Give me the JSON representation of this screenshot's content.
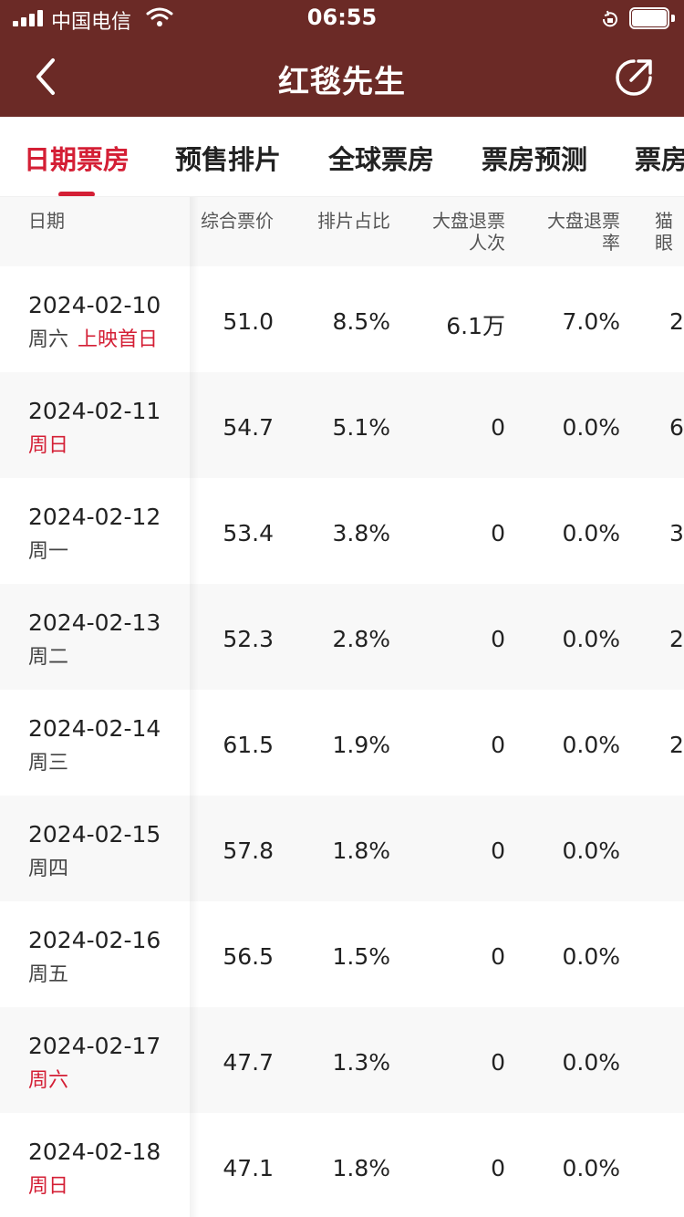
{
  "status": {
    "carrier": "中国电信",
    "time": "06:55"
  },
  "header": {
    "title": "红毯先生"
  },
  "tabs": [
    "日期票房",
    "预售排片",
    "全球票房",
    "票房预测",
    "票房"
  ],
  "columns": [
    "日期",
    "综合票价",
    "排片占比",
    "大盘退票人次",
    "大盘退票率",
    "猫眼"
  ],
  "columns_display": {
    "refund_count_l1": "大盘退票",
    "refund_count_l2": "人次",
    "refund_rate_l1": "大盘退票",
    "refund_rate_l2": "率",
    "cut": "猫眼"
  },
  "rows": [
    {
      "date": "2024-02-10",
      "weekday": "周六",
      "weekday_red": false,
      "tag": "上映首日",
      "price": "51.0",
      "share": "8.5%",
      "refund_count": "6.1万",
      "refund_rate": "7.0%",
      "cut": "2"
    },
    {
      "date": "2024-02-11",
      "weekday": "周日",
      "weekday_red": true,
      "tag": "",
      "price": "54.7",
      "share": "5.1%",
      "refund_count": "0",
      "refund_rate": "0.0%",
      "cut": "6"
    },
    {
      "date": "2024-02-12",
      "weekday": "周一",
      "weekday_red": false,
      "tag": "",
      "price": "53.4",
      "share": "3.8%",
      "refund_count": "0",
      "refund_rate": "0.0%",
      "cut": "3"
    },
    {
      "date": "2024-02-13",
      "weekday": "周二",
      "weekday_red": false,
      "tag": "",
      "price": "52.3",
      "share": "2.8%",
      "refund_count": "0",
      "refund_rate": "0.0%",
      "cut": "2"
    },
    {
      "date": "2024-02-14",
      "weekday": "周三",
      "weekday_red": false,
      "tag": "",
      "price": "61.5",
      "share": "1.9%",
      "refund_count": "0",
      "refund_rate": "0.0%",
      "cut": "2"
    },
    {
      "date": "2024-02-15",
      "weekday": "周四",
      "weekday_red": false,
      "tag": "",
      "price": "57.8",
      "share": "1.8%",
      "refund_count": "0",
      "refund_rate": "0.0%",
      "cut": ""
    },
    {
      "date": "2024-02-16",
      "weekday": "周五",
      "weekday_red": false,
      "tag": "",
      "price": "56.5",
      "share": "1.5%",
      "refund_count": "0",
      "refund_rate": "0.0%",
      "cut": ""
    },
    {
      "date": "2024-02-17",
      "weekday": "周六",
      "weekday_red": true,
      "tag": "",
      "price": "47.7",
      "share": "1.3%",
      "refund_count": "0",
      "refund_rate": "0.0%",
      "cut": ""
    },
    {
      "date": "2024-02-18",
      "weekday": "周日",
      "weekday_red": true,
      "tag": "",
      "price": "47.1",
      "share": "1.8%",
      "refund_count": "0",
      "refund_rate": "0.0%",
      "cut": ""
    }
  ],
  "colors": {
    "header_bg": "#6b2a26",
    "accent": "#d41f35",
    "row_alt": "#f8f8f8"
  },
  "icons": {
    "back": "chevron-left-icon",
    "share": "share-icon",
    "wifi": "wifi-icon",
    "signal": "signal-icon",
    "battery": "battery-icon",
    "lock": "rotation-lock-icon"
  }
}
